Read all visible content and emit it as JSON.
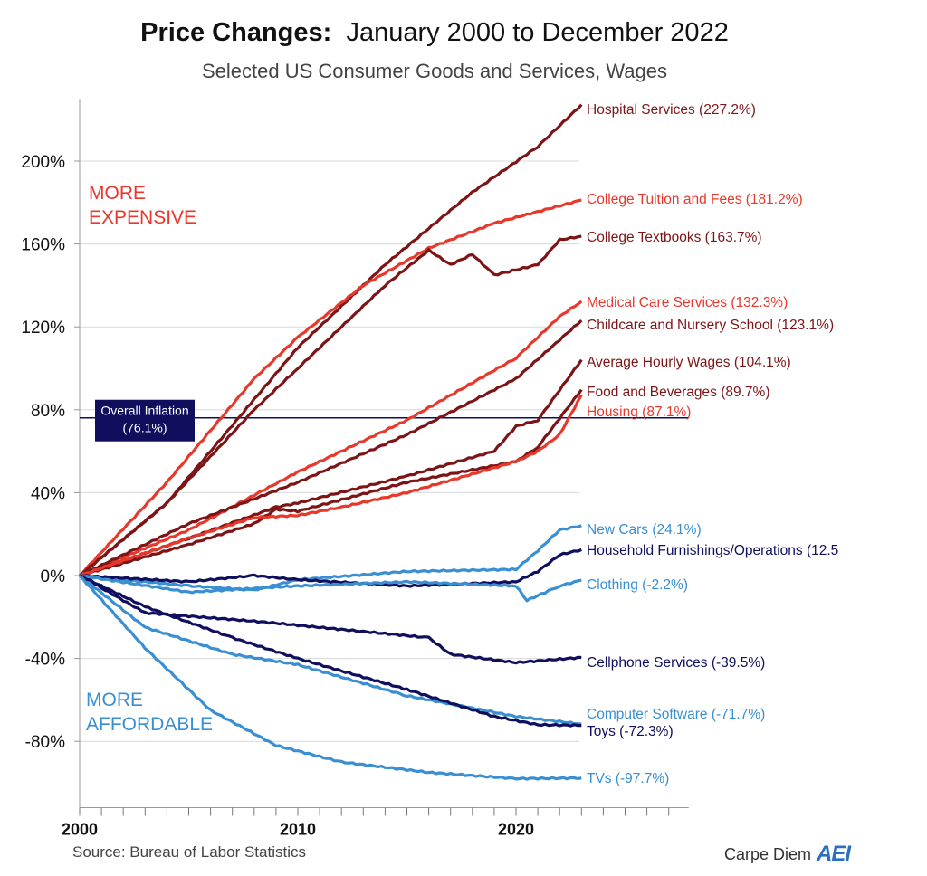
{
  "title_bold": "Price Changes:",
  "title_rest": "January 2000 to December 2022",
  "subtitle": "Selected US Consumer Goods and Services, Wages",
  "source": "Source: Bureau of Labor Statistics",
  "brand": "Carpe Diem",
  "logo_text": "AEI",
  "colors": {
    "dark_red": "#7d1416",
    "red": "#e8382c",
    "navy": "#0f0f5e",
    "blue": "#3a8fd3",
    "grid": "#d8d8d8"
  },
  "chart_data": {
    "type": "line",
    "title": "Price Changes: January 2000 to December 2022",
    "subtitle": "Selected US Consumer Goods and Services, Wages",
    "xlim": [
      2000,
      2028
    ],
    "ylim": [
      -112,
      230
    ],
    "x_ticks": [
      2000,
      2010,
      2020
    ],
    "x_tick_labels": [
      "2000",
      "2010",
      "2020"
    ],
    "y_ticks": [
      -80,
      -40,
      0,
      40,
      80,
      120,
      160,
      200
    ],
    "y_tick_labels": [
      "-80%",
      "-40%",
      "0%",
      "40%",
      "80%",
      "120%",
      "160%",
      "200%"
    ],
    "grid": "horizontal",
    "annotations": {
      "expensive": [
        "MORE",
        "EXPENSIVE"
      ],
      "affordable": [
        "MORE",
        "AFFORDABLE"
      ],
      "inflation": {
        "label": [
          "Overall Inflation",
          "(76.1%)"
        ],
        "value": 76.1
      }
    },
    "series": [
      {
        "name": "Hospital Services (227.2%)",
        "color": "dark_red",
        "label_color": "dark_red",
        "points": [
          [
            2000,
            0
          ],
          [
            2004,
            35
          ],
          [
            2008,
            85
          ],
          [
            2010,
            110
          ],
          [
            2014,
            150
          ],
          [
            2018,
            185
          ],
          [
            2021,
            207
          ],
          [
            2023,
            227.2
          ]
        ]
      },
      {
        "name": "College Tuition and Fees (181.2%)",
        "color": "red",
        "label_color": "red",
        "points": [
          [
            2000,
            0
          ],
          [
            2004,
            45
          ],
          [
            2008,
            95
          ],
          [
            2010,
            115
          ],
          [
            2013,
            140
          ],
          [
            2016,
            158
          ],
          [
            2019,
            170
          ],
          [
            2023,
            181.2
          ]
        ]
      },
      {
        "name": "College Textbooks (163.7%)",
        "color": "dark_red",
        "label_color": "dark_red",
        "points": [
          [
            2000,
            0
          ],
          [
            2004,
            35
          ],
          [
            2008,
            80
          ],
          [
            2010,
            100
          ],
          [
            2014,
            140
          ],
          [
            2016,
            157
          ],
          [
            2017,
            150
          ],
          [
            2018,
            155
          ],
          [
            2019,
            145
          ],
          [
            2021,
            150
          ],
          [
            2022,
            162
          ],
          [
            2023,
            163.7
          ]
        ]
      },
      {
        "name": "Medical Care Services (132.3%)",
        "color": "red",
        "label_color": "red",
        "points": [
          [
            2000,
            0
          ],
          [
            2005,
            22
          ],
          [
            2010,
            50
          ],
          [
            2015,
            75
          ],
          [
            2020,
            105
          ],
          [
            2022,
            125
          ],
          [
            2023,
            132.3
          ]
        ]
      },
      {
        "name": "Childcare and Nursery School (123.1%)",
        "color": "dark_red",
        "label_color": "dark_red",
        "points": [
          [
            2000,
            0
          ],
          [
            2005,
            25
          ],
          [
            2010,
            45
          ],
          [
            2015,
            68
          ],
          [
            2020,
            95
          ],
          [
            2023,
            123.1
          ]
        ]
      },
      {
        "name": "Average Hourly Wages (104.1%)",
        "color": "dark_red",
        "label_color": "dark_red",
        "points": [
          [
            2000,
            0
          ],
          [
            2005,
            18
          ],
          [
            2009,
            33
          ],
          [
            2010,
            35
          ],
          [
            2015,
            48
          ],
          [
            2019,
            60
          ],
          [
            2020,
            72
          ],
          [
            2021,
            75
          ],
          [
            2023,
            104.1
          ]
        ]
      },
      {
        "name": "Food and Beverages (89.7%)",
        "color": "dark_red",
        "label_color": "dark_red",
        "points": [
          [
            2000,
            0
          ],
          [
            2005,
            15
          ],
          [
            2008,
            25
          ],
          [
            2009,
            32
          ],
          [
            2010,
            31
          ],
          [
            2015,
            45
          ],
          [
            2020,
            55
          ],
          [
            2021,
            62
          ],
          [
            2023,
            89.7
          ]
        ]
      },
      {
        "name": "Housing (87.1%)",
        "color": "red",
        "label_color": "red",
        "points": [
          [
            2000,
            0
          ],
          [
            2005,
            18
          ],
          [
            2008,
            28
          ],
          [
            2010,
            29
          ],
          [
            2012,
            33
          ],
          [
            2015,
            40
          ],
          [
            2020,
            55
          ],
          [
            2021,
            60
          ],
          [
            2022,
            68
          ],
          [
            2023,
            87.1
          ]
        ]
      },
      {
        "name": "New Cars (24.1%)",
        "color": "blue",
        "label_color": "blue",
        "points": [
          [
            2000,
            0
          ],
          [
            2005,
            -5
          ],
          [
            2008,
            -7
          ],
          [
            2010,
            -2
          ],
          [
            2015,
            2
          ],
          [
            2020,
            3
          ],
          [
            2021,
            12
          ],
          [
            2022,
            22
          ],
          [
            2023,
            24.1
          ]
        ]
      },
      {
        "name": "Household Furnishings/Operations (12.5",
        "color": "navy",
        "label_color": "navy",
        "points": [
          [
            2000,
            0
          ],
          [
            2005,
            -3
          ],
          [
            2008,
            0
          ],
          [
            2010,
            -2
          ],
          [
            2015,
            -5
          ],
          [
            2020,
            -3
          ],
          [
            2021,
            2
          ],
          [
            2022,
            10
          ],
          [
            2023,
            12.5
          ]
        ]
      },
      {
        "name": "Clothing (-2.2%)",
        "color": "blue",
        "label_color": "blue",
        "points": [
          [
            2000,
            0
          ],
          [
            2005,
            -8
          ],
          [
            2010,
            -5
          ],
          [
            2015,
            -3
          ],
          [
            2020,
            -5
          ],
          [
            2020.5,
            -12
          ],
          [
            2022,
            -5
          ],
          [
            2023,
            -2.2
          ]
        ]
      },
      {
        "name": "Cellphone Services (-39.5%)",
        "color": "navy",
        "label_color": "navy",
        "points": [
          [
            2000,
            0
          ],
          [
            2003,
            -18
          ],
          [
            2008,
            -22
          ],
          [
            2013,
            -27
          ],
          [
            2016,
            -30
          ],
          [
            2017,
            -38
          ],
          [
            2020,
            -42
          ],
          [
            2023,
            -39.5
          ]
        ]
      },
      {
        "name": "Computer Software (-71.7%)",
        "color": "blue",
        "label_color": "blue",
        "points": [
          [
            2000,
            0
          ],
          [
            2003,
            -25
          ],
          [
            2007,
            -38
          ],
          [
            2010,
            -43
          ],
          [
            2015,
            -58
          ],
          [
            2017,
            -62
          ],
          [
            2020,
            -68
          ],
          [
            2023,
            -71.7
          ]
        ]
      },
      {
        "name": "Toys (-72.3%)",
        "color": "navy",
        "label_color": "navy",
        "points": [
          [
            2000,
            0
          ],
          [
            2003,
            -15
          ],
          [
            2007,
            -30
          ],
          [
            2010,
            -40
          ],
          [
            2015,
            -55
          ],
          [
            2019,
            -68
          ],
          [
            2021,
            -72
          ],
          [
            2023,
            -72.3
          ]
        ]
      },
      {
        "name": "TVs (-97.7%)",
        "color": "blue",
        "label_color": "blue",
        "points": [
          [
            2000,
            0
          ],
          [
            2003,
            -35
          ],
          [
            2006,
            -65
          ],
          [
            2009,
            -82
          ],
          [
            2012,
            -90
          ],
          [
            2016,
            -95
          ],
          [
            2020,
            -98
          ],
          [
            2023,
            -97.7
          ]
        ]
      }
    ]
  }
}
